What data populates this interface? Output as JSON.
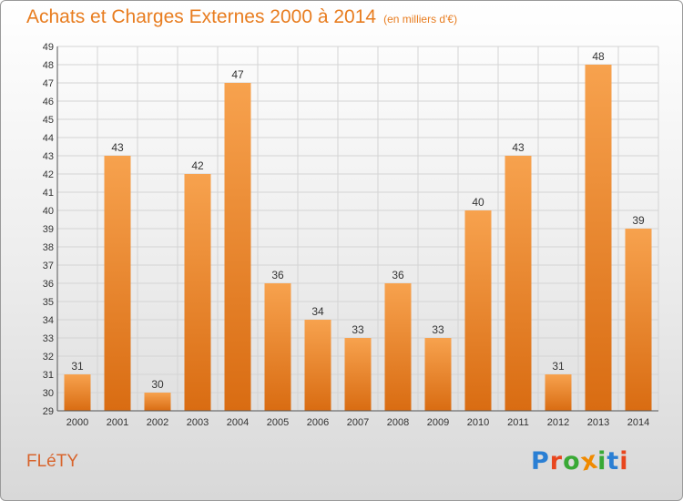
{
  "header": {
    "title": "Achats et Charges Externes 2000 à 2014",
    "subtitle": "(en milliers d'€)"
  },
  "footer": {
    "commune": "FLéTY",
    "brand": "Proxiti",
    "brand_colors": [
      "#2a7fd4",
      "#e8461e",
      "#39a935",
      "#f08a00",
      "#39a935",
      "#2a7fd4",
      "#e8461e"
    ]
  },
  "chart_data": {
    "type": "bar",
    "categories": [
      "2000",
      "2001",
      "2002",
      "2003",
      "2004",
      "2005",
      "2006",
      "2007",
      "2008",
      "2009",
      "2010",
      "2011",
      "2012",
      "2013",
      "2014"
    ],
    "values": [
      31,
      43,
      30,
      42,
      47,
      36,
      34,
      33,
      36,
      33,
      40,
      43,
      31,
      48,
      39
    ],
    "ylim": [
      29,
      49
    ],
    "yticks": [
      29,
      30,
      31,
      32,
      33,
      34,
      35,
      36,
      37,
      38,
      39,
      40,
      41,
      42,
      43,
      44,
      45,
      46,
      47,
      48,
      49
    ],
    "grid": true,
    "legend": "none",
    "bar_color": "#f08a2a",
    "bar_color_dark": "#d86a10",
    "grid_color": "#d4d4d4",
    "text_color": "#333333"
  }
}
